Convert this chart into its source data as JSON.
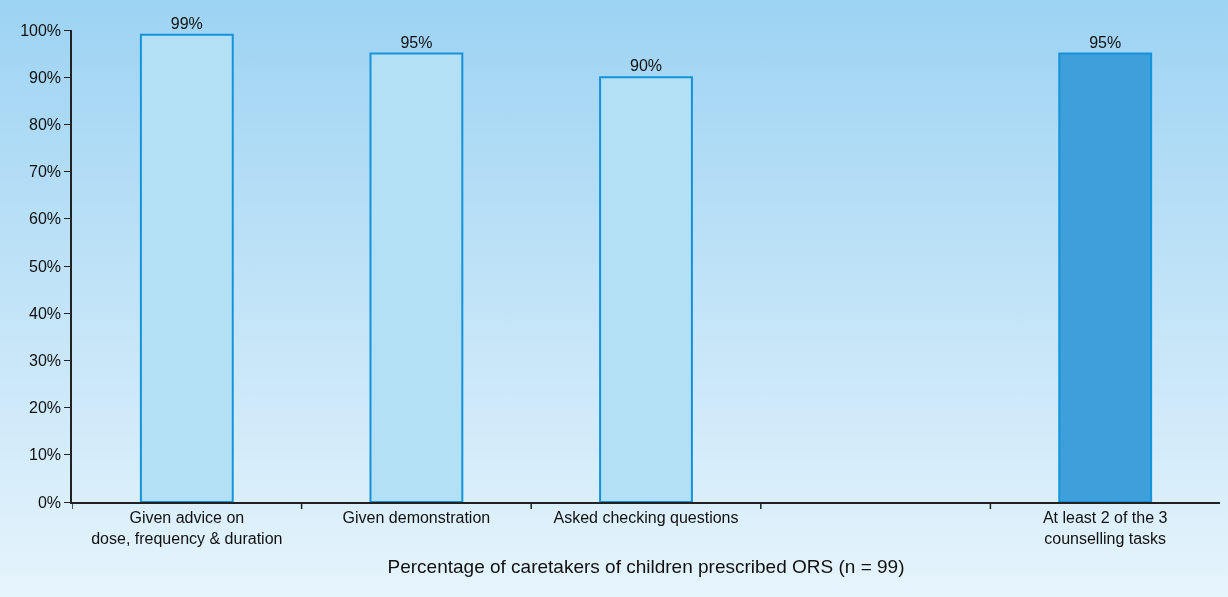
{
  "chart_data": {
    "type": "bar",
    "xlabel": "Percentage of caretakers of children prescribed ORS (n = 99)",
    "categories": [
      "Given advice on\ndose, frequency & duration",
      "Given demonstration",
      "Asked checking questions",
      null,
      "At least 2 of the 3\ncounselling tasks"
    ],
    "values": [
      99,
      95,
      90,
      null,
      95
    ],
    "colors": [
      "#b4e0f6",
      "#b4e0f6",
      "#b4e0f6",
      null,
      "#3f9fdb"
    ],
    "value_labels": [
      "99%",
      "95%",
      "90%",
      null,
      "95%"
    ],
    "ylim": [
      0,
      100
    ],
    "yticks": [
      {
        "value": 0,
        "label": "0%"
      },
      {
        "value": 10,
        "label": "10%"
      },
      {
        "value": 20,
        "label": "20%"
      },
      {
        "value": 30,
        "label": "30%"
      },
      {
        "value": 40,
        "label": "40%"
      },
      {
        "value": 50,
        "label": "50%"
      },
      {
        "value": 60,
        "label": "60%"
      },
      {
        "value": 70,
        "label": "70%"
      },
      {
        "value": 80,
        "label": "80%"
      },
      {
        "value": 90,
        "label": "90%"
      },
      {
        "value": 100,
        "label": "100%"
      }
    ],
    "grid": false
  }
}
